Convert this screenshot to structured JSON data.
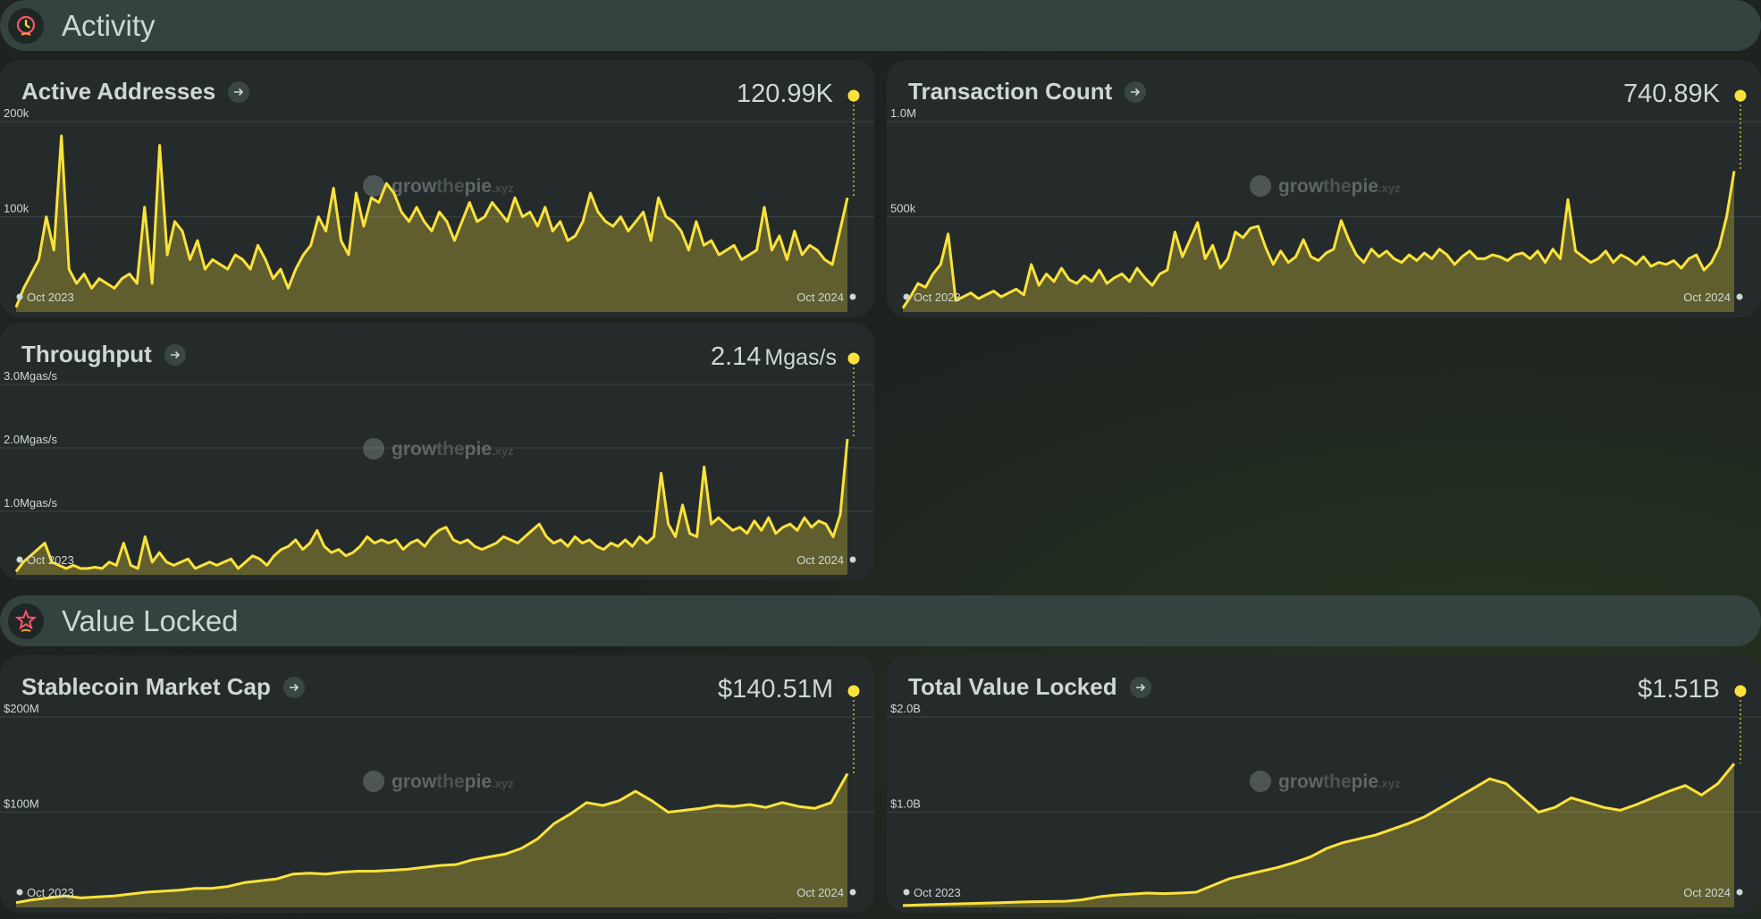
{
  "sections": [
    {
      "title": "Activity",
      "icon": "clock-icon"
    },
    {
      "title": "Value Locked",
      "icon": "star-icon"
    }
  ],
  "watermark": {
    "grow": "grow",
    "the": "the",
    "pie": "pie",
    "xyz": ".xyz"
  },
  "colors": {
    "accent": "#fbe23b",
    "background": "#1f2422",
    "card": "#252b2b",
    "header": "#344240"
  },
  "chart_data": [
    {
      "type": "line",
      "title": "Active Addresses",
      "value": "120.99K",
      "unit": "",
      "ylim": [
        0,
        200000
      ],
      "ticks": [
        {
          "v": 200000,
          "label": "200k"
        },
        {
          "v": 100000,
          "label": "100k"
        }
      ],
      "x_start_label": "Oct 2023",
      "x_end_label": "Oct 2024",
      "series": [
        {
          "values": [
            5000,
            25000,
            40000,
            55000,
            100000,
            65000,
            185000,
            45000,
            30000,
            40000,
            25000,
            35000,
            30000,
            25000,
            35000,
            40000,
            30000,
            110000,
            30000,
            175000,
            60000,
            95000,
            85000,
            55000,
            75000,
            45000,
            55000,
            50000,
            45000,
            60000,
            55000,
            45000,
            70000,
            55000,
            35000,
            45000,
            25000,
            45000,
            60000,
            70000,
            100000,
            85000,
            130000,
            75000,
            60000,
            125000,
            90000,
            120000,
            115000,
            135000,
            125000,
            105000,
            95000,
            110000,
            95000,
            85000,
            105000,
            95000,
            75000,
            95000,
            115000,
            95000,
            100000,
            115000,
            105000,
            95000,
            120000,
            100000,
            105000,
            90000,
            110000,
            85000,
            95000,
            75000,
            80000,
            95000,
            125000,
            105000,
            95000,
            90000,
            100000,
            85000,
            95000,
            105000,
            75000,
            120000,
            100000,
            95000,
            85000,
            65000,
            95000,
            70000,
            75000,
            60000,
            65000,
            70000,
            55000,
            60000,
            65000,
            110000,
            65000,
            80000,
            55000,
            85000,
            60000,
            70000,
            65000,
            55000,
            50000,
            85000,
            120000
          ]
        }
      ]
    },
    {
      "type": "line",
      "title": "Transaction Count",
      "value": "740.89K",
      "unit": "",
      "ylim": [
        0,
        1000000
      ],
      "ticks": [
        {
          "v": 1000000,
          "label": "1.0M"
        },
        {
          "v": 500000,
          "label": "500k"
        }
      ],
      "x_start_label": "Oct 2023",
      "x_end_label": "Oct 2024",
      "series": [
        {
          "values": [
            20000,
            80000,
            150000,
            130000,
            200000,
            250000,
            410000,
            60000,
            80000,
            100000,
            70000,
            90000,
            110000,
            80000,
            100000,
            120000,
            90000,
            250000,
            140000,
            200000,
            160000,
            230000,
            170000,
            150000,
            190000,
            160000,
            220000,
            150000,
            180000,
            200000,
            160000,
            230000,
            180000,
            140000,
            200000,
            220000,
            420000,
            290000,
            380000,
            470000,
            280000,
            350000,
            230000,
            280000,
            420000,
            390000,
            440000,
            450000,
            340000,
            250000,
            320000,
            260000,
            290000,
            380000,
            290000,
            270000,
            310000,
            330000,
            480000,
            380000,
            300000,
            260000,
            330000,
            290000,
            320000,
            280000,
            260000,
            300000,
            270000,
            310000,
            280000,
            330000,
            300000,
            250000,
            290000,
            320000,
            280000,
            280000,
            300000,
            290000,
            270000,
            300000,
            310000,
            280000,
            320000,
            260000,
            330000,
            280000,
            590000,
            320000,
            290000,
            260000,
            280000,
            320000,
            260000,
            300000,
            280000,
            250000,
            290000,
            240000,
            260000,
            250000,
            270000,
            230000,
            280000,
            300000,
            220000,
            260000,
            340000,
            500000,
            740000
          ]
        }
      ]
    },
    {
      "type": "line",
      "title": "Throughput",
      "value": "2.14",
      "unit": "Mgas/s",
      "ylim": [
        0,
        3.0
      ],
      "ticks": [
        {
          "v": 3.0,
          "label": "3.0Mgas/s"
        },
        {
          "v": 2.0,
          "label": "2.0Mgas/s"
        },
        {
          "v": 1.0,
          "label": "1.0Mgas/s"
        }
      ],
      "x_start_label": "Oct 2023",
      "x_end_label": "Oct 2024",
      "series": [
        {
          "values": [
            0.05,
            0.2,
            0.3,
            0.4,
            0.5,
            0.2,
            0.15,
            0.1,
            0.15,
            0.1,
            0.1,
            0.12,
            0.1,
            0.2,
            0.15,
            0.5,
            0.15,
            0.1,
            0.6,
            0.2,
            0.35,
            0.2,
            0.15,
            0.2,
            0.25,
            0.1,
            0.15,
            0.2,
            0.15,
            0.2,
            0.25,
            0.1,
            0.2,
            0.3,
            0.25,
            0.15,
            0.3,
            0.4,
            0.45,
            0.55,
            0.4,
            0.5,
            0.7,
            0.45,
            0.35,
            0.4,
            0.3,
            0.35,
            0.45,
            0.6,
            0.5,
            0.55,
            0.5,
            0.55,
            0.4,
            0.5,
            0.55,
            0.45,
            0.6,
            0.7,
            0.75,
            0.55,
            0.5,
            0.55,
            0.45,
            0.4,
            0.45,
            0.5,
            0.6,
            0.55,
            0.5,
            0.6,
            0.7,
            0.8,
            0.6,
            0.5,
            0.55,
            0.45,
            0.6,
            0.5,
            0.55,
            0.45,
            0.4,
            0.5,
            0.45,
            0.55,
            0.45,
            0.6,
            0.5,
            0.6,
            1.6,
            0.8,
            0.6,
            1.1,
            0.65,
            0.6,
            1.7,
            0.8,
            0.9,
            0.8,
            0.7,
            0.75,
            0.65,
            0.85,
            0.7,
            0.9,
            0.65,
            0.75,
            0.8,
            0.7,
            0.9,
            0.75,
            0.85,
            0.8,
            0.6,
            0.95,
            2.14
          ]
        }
      ]
    },
    {
      "type": "area",
      "title": "Stablecoin Market Cap",
      "value": "$140.51M",
      "unit": "",
      "ylim": [
        0,
        200000000
      ],
      "ticks": [
        {
          "v": 200000000,
          "label": "$200M"
        },
        {
          "v": 100000000,
          "label": "$100M"
        }
      ],
      "x_start_label": "Oct 2023",
      "x_end_label": "Oct 2024",
      "series": [
        {
          "values": [
            5000000,
            8000000,
            10000000,
            12000000,
            10000000,
            11000000,
            12000000,
            14000000,
            16000000,
            17000000,
            18000000,
            20000000,
            20000000,
            22000000,
            26000000,
            28000000,
            30000000,
            35000000,
            36000000,
            35000000,
            37000000,
            38000000,
            38000000,
            39000000,
            40000000,
            42000000,
            44000000,
            45000000,
            50000000,
            53000000,
            56000000,
            62000000,
            72000000,
            88000000,
            98000000,
            110000000,
            107000000,
            112000000,
            122000000,
            112000000,
            100000000,
            102000000,
            104000000,
            107000000,
            106000000,
            108000000,
            105000000,
            110000000,
            106000000,
            104000000,
            110000000,
            140510000
          ]
        }
      ]
    },
    {
      "type": "area",
      "title": "Total Value Locked",
      "value": "$1.51B",
      "unit": "",
      "ylim": [
        0,
        2000000000
      ],
      "ticks": [
        {
          "v": 2000000000,
          "label": "$2.0B"
        },
        {
          "v": 1000000000,
          "label": "$1.0B"
        }
      ],
      "x_start_label": "Oct 2023",
      "x_end_label": "Oct 2024",
      "series": [
        {
          "values": [
            20000000,
            25000000,
            30000000,
            35000000,
            40000000,
            45000000,
            50000000,
            55000000,
            60000000,
            62000000,
            65000000,
            80000000,
            110000000,
            130000000,
            140000000,
            150000000,
            145000000,
            150000000,
            160000000,
            230000000,
            300000000,
            340000000,
            380000000,
            420000000,
            470000000,
            530000000,
            620000000,
            680000000,
            720000000,
            760000000,
            820000000,
            880000000,
            950000000,
            1050000000,
            1150000000,
            1250000000,
            1350000000,
            1300000000,
            1150000000,
            1000000000,
            1050000000,
            1150000000,
            1100000000,
            1050000000,
            1020000000,
            1080000000,
            1150000000,
            1220000000,
            1280000000,
            1180000000,
            1300000000,
            1510000000
          ]
        }
      ]
    }
  ]
}
